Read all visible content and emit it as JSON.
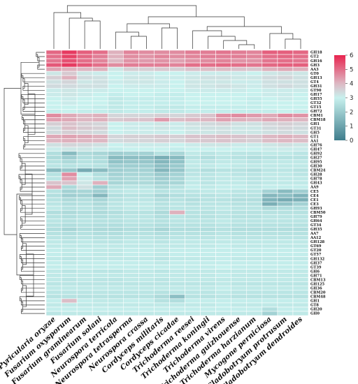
{
  "chart_data": {
    "type": "heatmap",
    "colormap": {
      "stops": [
        {
          "value": 0,
          "color": "#3f7d8c"
        },
        {
          "value": 3,
          "color": "#c8f1ee"
        },
        {
          "value": 4,
          "color": "#ddb8c3"
        },
        {
          "value": 6,
          "color": "#e8244f"
        }
      ],
      "range": [
        0,
        6
      ],
      "ticks": [
        "0",
        "1",
        "2",
        "3",
        "4",
        "5",
        "6"
      ]
    },
    "columns": [
      "Pyricularia oryzae",
      "Fusarium oxysporum",
      "Fusarium graminearum",
      "Fusarium solani",
      "Neurospora terricola",
      "Neurospora tetrasperma",
      "Neurospora crassa",
      "Cordyceps militaris",
      "Cordyceps cicadae",
      "Trichoderma reesei",
      "Trichoderma koningii",
      "Trichoderma virens",
      "Trichoderma guizhouense",
      "Trichoderma harzianum",
      "Mycogone perniciosa",
      "Cladobotryum protrusum",
      "Cladobotryum dendroides"
    ],
    "rows": [
      "GH18",
      "GT2",
      "GH16",
      "GH3",
      "AA3",
      "GT0",
      "GH13",
      "GT4",
      "GH31",
      "GT90",
      "GH17",
      "GH55",
      "GT32",
      "GT15",
      "GH72",
      "CBM1",
      "CBM18",
      "GH1",
      "GT31",
      "GH5",
      "GT1",
      "AA1",
      "GH76",
      "GH47",
      "GH92",
      "GH27",
      "GH95",
      "GH30",
      "CBM24",
      "GH28",
      "GH78",
      "GH43",
      "AA9",
      "CE5",
      "CE4",
      "CE1",
      "CE3",
      "GH93",
      "CBM50",
      "GH79",
      "GH64",
      "GT34",
      "GH35",
      "AA7",
      "AA12",
      "GH128",
      "GT69",
      "GT20",
      "GT57",
      "GH132",
      "GH37",
      "GT39",
      "GH6",
      "GH71",
      "CBM13",
      "GH125",
      "GH36",
      "CBM20",
      "CBM48",
      "GH1",
      "GT8",
      "GH20",
      "GH0"
    ],
    "values": [
      [
        5.1,
        5.7,
        5.2,
        5.0,
        4.1,
        4.7,
        4.6,
        4.6,
        4.6,
        4.8,
        4.8,
        4.9,
        4.8,
        4.7,
        5.2,
        5.2,
        5.1
      ],
      [
        5.0,
        5.6,
        5.1,
        4.8,
        4.1,
        4.6,
        4.5,
        4.7,
        4.6,
        4.7,
        4.8,
        4.8,
        4.8,
        4.7,
        5.0,
        5.1,
        5.0
      ],
      [
        4.9,
        5.4,
        5.0,
        4.7,
        4.0,
        4.5,
        4.4,
        4.5,
        4.3,
        4.5,
        4.6,
        4.7,
        4.5,
        4.5,
        4.9,
        5.0,
        4.9
      ],
      [
        5.3,
        5.7,
        5.3,
        5.0,
        4.6,
        4.8,
        4.8,
        4.8,
        4.7,
        5.0,
        5.0,
        5.1,
        5.0,
        4.9,
        5.1,
        5.2,
        5.2
      ],
      [
        4.3,
        4.1,
        4.0,
        4.1,
        3.2,
        3.6,
        3.6,
        3.7,
        3.6,
        3.8,
        3.9,
        3.9,
        3.8,
        3.7,
        4.1,
        4.2,
        4.1
      ],
      [
        3.2,
        3.7,
        3.2,
        3.1,
        3.0,
        3.1,
        3.1,
        3.0,
        3.0,
        3.1,
        3.1,
        3.1,
        3.1,
        3.0,
        3.2,
        3.3,
        3.2
      ],
      [
        3.6,
        4.1,
        3.4,
        3.3,
        3.0,
        3.2,
        3.2,
        3.1,
        3.1,
        3.2,
        3.3,
        3.3,
        3.2,
        3.2,
        3.4,
        3.5,
        3.3
      ],
      [
        3.3,
        3.5,
        3.2,
        3.3,
        3.1,
        3.2,
        3.2,
        3.1,
        3.0,
        3.2,
        3.2,
        3.2,
        3.1,
        3.1,
        3.3,
        3.3,
        3.3
      ],
      [
        3.4,
        3.4,
        3.3,
        3.3,
        3.0,
        3.1,
        3.1,
        3.1,
        3.0,
        3.2,
        3.2,
        3.3,
        3.2,
        3.1,
        3.3,
        3.4,
        3.3
      ],
      [
        3.1,
        3.2,
        3.1,
        3.1,
        3.0,
        3.0,
        3.0,
        3.0,
        3.0,
        3.1,
        3.1,
        3.1,
        3.1,
        3.0,
        3.1,
        3.1,
        3.1
      ],
      [
        3.1,
        3.2,
        3.1,
        3.0,
        2.9,
        3.0,
        3.0,
        2.9,
        2.9,
        3.0,
        3.0,
        3.0,
        3.0,
        3.0,
        3.1,
        3.1,
        3.0
      ],
      [
        3.0,
        3.1,
        3.0,
        3.0,
        2.8,
        2.9,
        2.9,
        2.9,
        2.9,
        3.0,
        3.0,
        3.0,
        3.0,
        2.9,
        3.0,
        3.1,
        3.0
      ],
      [
        3.0,
        3.1,
        3.0,
        3.0,
        2.8,
        2.9,
        2.9,
        2.9,
        2.9,
        3.0,
        3.0,
        3.0,
        3.0,
        2.9,
        3.0,
        3.0,
        3.0
      ],
      [
        3.0,
        3.0,
        3.0,
        2.9,
        2.8,
        2.9,
        2.9,
        2.8,
        2.8,
        2.9,
        2.9,
        2.9,
        2.9,
        2.9,
        3.0,
        3.0,
        3.0
      ],
      [
        2.9,
        3.0,
        2.9,
        2.9,
        2.8,
        2.9,
        2.9,
        2.8,
        2.8,
        2.9,
        2.9,
        2.9,
        2.9,
        2.9,
        2.9,
        3.0,
        2.9
      ],
      [
        4.6,
        4.2,
        4.0,
        4.1,
        3.5,
        3.5,
        3.5,
        3.6,
        3.5,
        3.7,
        3.8,
        4.5,
        4.6,
        4.4,
        4.2,
        4.6,
        4.5
      ],
      [
        4.3,
        4.2,
        4.0,
        4.1,
        3.7,
        3.8,
        3.8,
        4.4,
        3.9,
        4.0,
        4.0,
        4.3,
        4.1,
        4.0,
        4.2,
        4.1,
        4.0
      ],
      [
        3.6,
        3.8,
        3.6,
        3.5,
        3.0,
        3.1,
        3.1,
        3.2,
        3.1,
        3.3,
        3.4,
        3.5,
        3.3,
        3.3,
        3.5,
        3.6,
        3.5
      ],
      [
        3.4,
        3.9,
        3.7,
        3.6,
        3.0,
        3.1,
        3.1,
        3.2,
        3.1,
        3.2,
        3.3,
        3.3,
        3.2,
        3.2,
        3.4,
        3.5,
        3.4
      ],
      [
        3.4,
        3.6,
        3.5,
        3.4,
        3.0,
        3.1,
        3.1,
        3.1,
        3.0,
        3.2,
        3.2,
        3.3,
        3.2,
        3.2,
        3.3,
        3.4,
        3.3
      ],
      [
        4.2,
        4.3,
        4.2,
        4.1,
        3.5,
        3.6,
        3.6,
        3.7,
        3.6,
        3.8,
        3.8,
        3.9,
        3.8,
        3.7,
        4.0,
        4.1,
        4.0
      ],
      [
        4.0,
        4.1,
        4.0,
        4.0,
        3.4,
        3.5,
        3.5,
        3.6,
        3.5,
        3.7,
        3.7,
        3.8,
        3.7,
        3.6,
        3.9,
        4.0,
        3.9
      ],
      [
        3.3,
        3.5,
        3.4,
        3.3,
        3.0,
        3.1,
        3.1,
        3.1,
        3.0,
        3.1,
        3.2,
        3.2,
        3.1,
        3.1,
        3.2,
        3.3,
        3.2
      ],
      [
        3.1,
        3.2,
        3.2,
        3.1,
        2.9,
        3.0,
        3.0,
        3.0,
        2.9,
        3.0,
        3.0,
        3.0,
        3.0,
        3.0,
        3.1,
        3.1,
        3.1
      ],
      [
        2.5,
        1.6,
        2.4,
        2.3,
        2.1,
        2.2,
        2.2,
        2.6,
        2.3,
        2.8,
        2.7,
        2.8,
        2.7,
        2.7,
        2.8,
        2.8,
        2.7
      ],
      [
        2.4,
        2.1,
        2.5,
        2.4,
        1.6,
        1.7,
        1.7,
        1.3,
        1.6,
        2.6,
        2.5,
        2.7,
        2.6,
        2.5,
        2.6,
        2.6,
        2.6
      ],
      [
        2.6,
        2.4,
        2.6,
        2.5,
        1.8,
        1.9,
        1.9,
        1.5,
        1.8,
        2.8,
        2.7,
        2.8,
        2.8,
        2.7,
        2.8,
        2.8,
        2.8
      ],
      [
        2.7,
        2.6,
        2.7,
        2.6,
        2.1,
        2.1,
        2.1,
        1.7,
        2.0,
        2.8,
        2.8,
        2.9,
        2.8,
        2.8,
        2.8,
        2.8,
        2.8
      ],
      [
        1.6,
        1.9,
        1.2,
        1.6,
        2.1,
        2.2,
        2.2,
        1.5,
        1.9,
        2.6,
        2.5,
        2.6,
        2.6,
        2.5,
        2.7,
        2.7,
        2.6
      ],
      [
        2.6,
        4.6,
        3.0,
        2.5,
        2.2,
        2.3,
        2.3,
        2.0,
        2.2,
        2.7,
        2.7,
        2.8,
        2.7,
        2.7,
        2.8,
        2.8,
        2.7
      ],
      [
        2.7,
        4.3,
        3.1,
        2.6,
        2.3,
        2.4,
        2.4,
        2.1,
        2.3,
        2.8,
        2.7,
        2.8,
        2.8,
        2.7,
        2.8,
        2.8,
        2.8
      ],
      [
        3.8,
        3.8,
        3.2,
        4.1,
        2.3,
        2.4,
        2.4,
        2.2,
        2.3,
        2.8,
        2.7,
        2.8,
        2.8,
        2.7,
        2.8,
        2.8,
        2.8
      ],
      [
        4.2,
        2.4,
        3.3,
        2.1,
        2.6,
        2.7,
        2.7,
        2.4,
        2.6,
        2.9,
        2.8,
        2.9,
        2.9,
        2.8,
        2.9,
        2.9,
        2.9
      ],
      [
        2.6,
        2.2,
        2.3,
        2.1,
        2.7,
        2.8,
        2.8,
        2.6,
        2.7,
        2.7,
        2.8,
        2.8,
        2.7,
        2.7,
        2.2,
        1.6,
        2.1
      ],
      [
        2.5,
        2.1,
        2.2,
        1.5,
        2.5,
        2.6,
        2.6,
        2.3,
        2.5,
        2.6,
        2.6,
        2.7,
        2.6,
        2.6,
        1.5,
        1.7,
        1.4
      ],
      [
        2.6,
        2.4,
        2.5,
        2.3,
        2.6,
        2.7,
        2.7,
        2.5,
        2.6,
        2.5,
        2.6,
        2.6,
        2.5,
        2.5,
        1.4,
        1.2,
        1.3
      ],
      [
        2.7,
        2.5,
        2.6,
        2.4,
        2.7,
        2.8,
        2.8,
        2.6,
        2.7,
        2.6,
        2.7,
        2.7,
        2.6,
        2.6,
        1.3,
        1.8,
        2.2
      ],
      [
        2.8,
        2.6,
        2.7,
        2.5,
        2.7,
        2.8,
        2.8,
        2.6,
        2.7,
        2.7,
        2.7,
        2.8,
        2.7,
        2.7,
        2.4,
        2.5,
        2.5
      ],
      [
        2.5,
        2.4,
        2.5,
        2.4,
        2.5,
        2.6,
        2.6,
        2.4,
        4.1,
        2.6,
        2.6,
        2.7,
        2.6,
        2.6,
        2.6,
        2.6,
        2.6
      ],
      [
        2.6,
        2.5,
        2.6,
        2.5,
        2.6,
        2.7,
        2.7,
        2.5,
        2.7,
        2.6,
        2.6,
        2.7,
        2.6,
        2.6,
        2.7,
        2.7,
        2.7
      ],
      [
        2.7,
        2.6,
        2.7,
        2.6,
        2.6,
        2.7,
        2.7,
        2.6,
        2.7,
        2.7,
        2.7,
        2.8,
        2.7,
        2.7,
        2.7,
        2.7,
        2.7
      ],
      [
        2.6,
        2.5,
        2.6,
        2.5,
        2.5,
        2.6,
        2.6,
        2.5,
        2.6,
        2.6,
        2.6,
        2.7,
        2.6,
        2.6,
        2.6,
        2.6,
        2.6
      ],
      [
        2.5,
        2.3,
        2.5,
        2.4,
        2.4,
        2.5,
        2.5,
        2.3,
        2.5,
        2.5,
        2.5,
        2.6,
        2.5,
        2.5,
        2.5,
        2.5,
        2.5
      ],
      [
        2.6,
        2.5,
        2.6,
        2.5,
        2.5,
        2.6,
        2.6,
        2.5,
        2.6,
        2.6,
        2.6,
        2.7,
        2.6,
        2.6,
        2.6,
        2.6,
        2.6
      ],
      [
        2.7,
        2.6,
        2.7,
        2.6,
        2.6,
        2.7,
        2.7,
        2.6,
        2.7,
        2.7,
        2.7,
        2.8,
        2.7,
        2.7,
        2.7,
        2.7,
        2.7
      ],
      [
        2.8,
        2.7,
        2.8,
        2.7,
        2.7,
        2.8,
        2.8,
        2.7,
        2.8,
        2.8,
        2.8,
        2.8,
        2.8,
        2.8,
        2.8,
        2.8,
        2.8
      ],
      [
        2.8,
        2.8,
        2.8,
        2.8,
        2.8,
        2.8,
        2.8,
        2.8,
        2.8,
        2.8,
        2.8,
        2.9,
        2.8,
        2.8,
        2.8,
        2.8,
        2.8
      ],
      [
        2.9,
        2.8,
        2.9,
        2.8,
        2.8,
        2.9,
        2.9,
        2.8,
        2.9,
        2.9,
        2.9,
        2.9,
        2.9,
        2.9,
        2.9,
        2.9,
        2.9
      ],
      [
        2.9,
        2.8,
        2.9,
        2.8,
        2.8,
        2.9,
        2.9,
        2.8,
        2.9,
        2.9,
        2.9,
        2.9,
        2.9,
        2.9,
        2.9,
        2.9,
        2.9
      ],
      [
        2.8,
        2.7,
        2.8,
        2.8,
        2.8,
        2.8,
        2.8,
        2.7,
        2.8,
        2.8,
        2.8,
        2.9,
        2.8,
        2.8,
        2.8,
        2.8,
        2.8
      ],
      [
        2.9,
        2.8,
        2.9,
        2.9,
        2.9,
        2.9,
        2.9,
        2.8,
        2.9,
        2.9,
        2.9,
        2.9,
        2.9,
        2.9,
        2.9,
        2.9,
        2.9
      ],
      [
        2.9,
        2.9,
        2.9,
        2.9,
        2.9,
        2.9,
        2.9,
        2.9,
        2.9,
        2.9,
        2.9,
        3.0,
        2.9,
        2.9,
        2.9,
        2.9,
        2.9
      ],
      [
        2.8,
        2.7,
        2.8,
        2.7,
        2.7,
        2.8,
        2.8,
        2.7,
        2.8,
        2.8,
        2.8,
        2.8,
        2.8,
        2.8,
        2.8,
        2.8,
        2.8
      ],
      [
        2.8,
        2.8,
        2.8,
        2.8,
        2.8,
        2.8,
        2.8,
        2.8,
        2.8,
        2.8,
        2.8,
        2.9,
        2.8,
        2.8,
        2.8,
        2.8,
        2.8
      ],
      [
        2.8,
        2.7,
        2.8,
        2.7,
        2.7,
        2.8,
        2.8,
        2.7,
        2.8,
        2.8,
        2.8,
        2.8,
        2.8,
        2.8,
        2.8,
        2.8,
        2.8
      ],
      [
        2.7,
        2.7,
        2.7,
        2.7,
        2.7,
        2.7,
        2.7,
        2.7,
        2.7,
        2.7,
        2.7,
        2.8,
        2.7,
        2.7,
        2.7,
        2.7,
        2.7
      ],
      [
        2.8,
        2.8,
        2.8,
        2.8,
        2.8,
        2.8,
        2.8,
        2.8,
        2.8,
        2.8,
        2.8,
        2.9,
        2.8,
        2.8,
        2.8,
        2.8,
        2.8
      ],
      [
        2.7,
        2.7,
        2.7,
        2.7,
        2.7,
        2.7,
        2.7,
        2.6,
        2.7,
        2.7,
        2.7,
        2.8,
        2.7,
        2.7,
        2.7,
        2.7,
        2.7
      ],
      [
        2.6,
        2.6,
        2.6,
        2.6,
        2.6,
        2.6,
        2.6,
        2.4,
        1.7,
        2.6,
        2.6,
        2.7,
        2.6,
        2.6,
        2.6,
        2.6,
        2.6
      ],
      [
        2.9,
        3.9,
        2.9,
        2.8,
        2.8,
        2.9,
        2.9,
        2.6,
        2.5,
        2.9,
        2.9,
        2.9,
        2.9,
        2.9,
        2.9,
        2.9,
        2.9
      ],
      [
        2.8,
        2.8,
        2.8,
        2.8,
        2.8,
        2.8,
        2.8,
        2.8,
        2.8,
        2.8,
        2.8,
        2.9,
        2.8,
        2.8,
        2.8,
        2.8,
        2.8
      ],
      [
        2.9,
        2.9,
        2.9,
        2.9,
        2.9,
        2.9,
        2.9,
        2.9,
        2.9,
        2.9,
        2.9,
        2.9,
        2.9,
        2.9,
        2.5,
        2.9,
        2.9
      ],
      [
        2.7,
        2.8,
        2.8,
        2.8,
        2.8,
        2.8,
        2.8,
        2.8,
        2.8,
        2.8,
        2.8,
        2.8,
        2.8,
        2.8,
        2.2,
        2.8,
        2.8
      ]
    ]
  }
}
